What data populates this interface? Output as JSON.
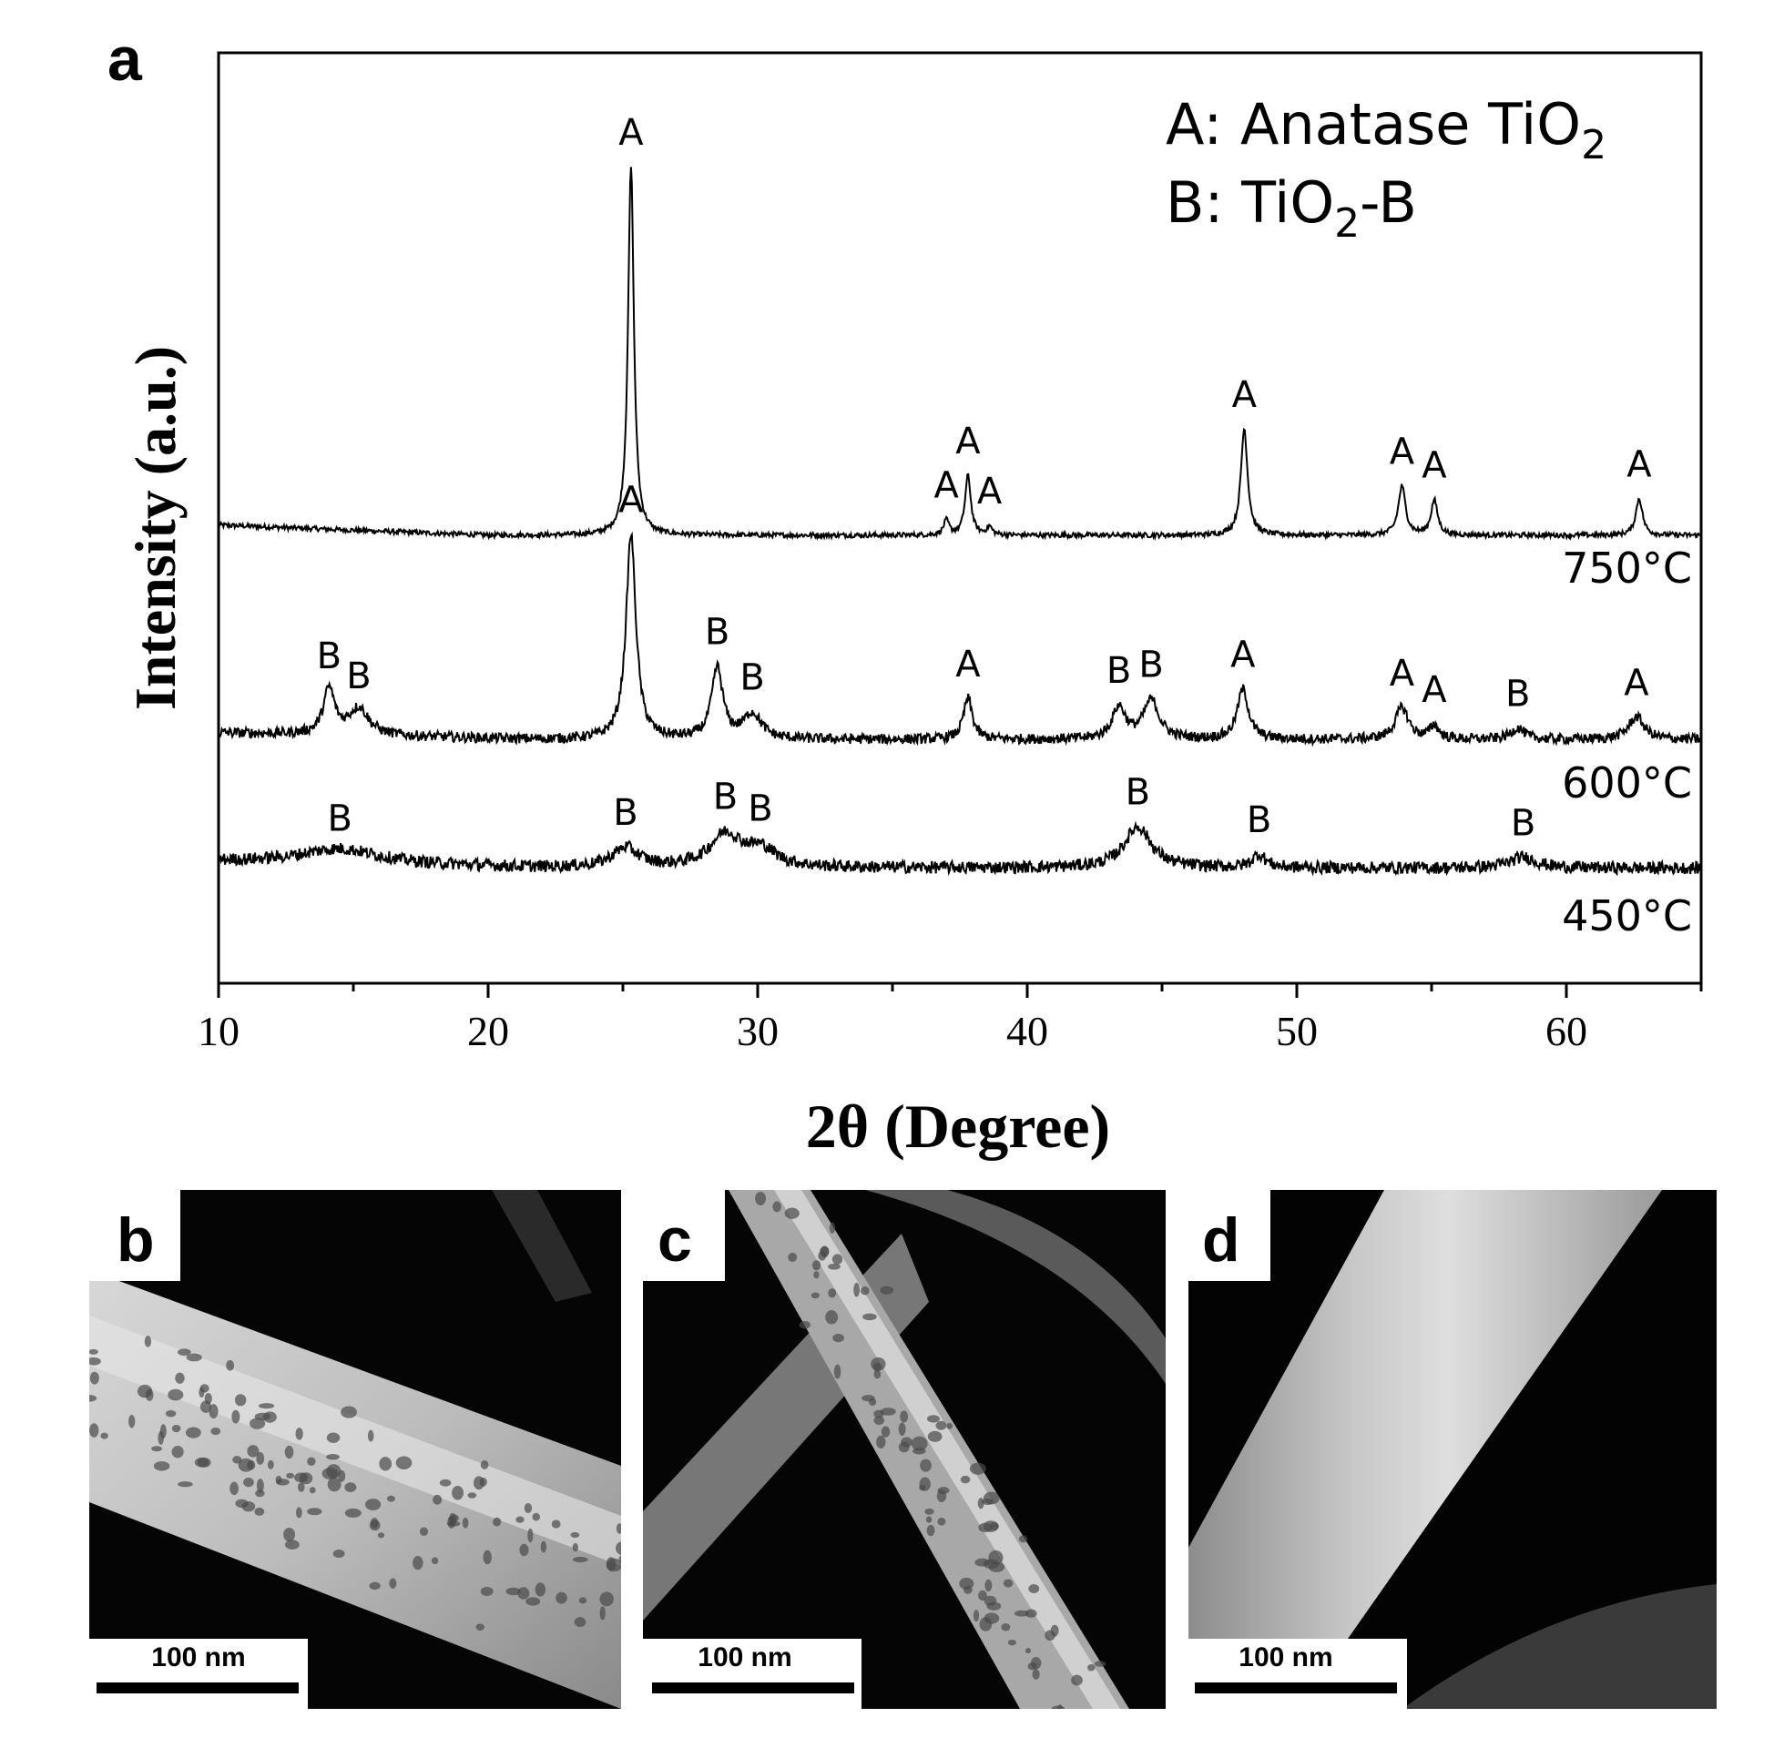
{
  "chart_data": {
    "type": "line",
    "panel_label": "a",
    "xlabel": "2θ (Degree)",
    "ylabel": "Intensity (a.u.)",
    "xlim": [
      10,
      65
    ],
    "xticks": [
      10,
      20,
      30,
      40,
      50,
      60
    ],
    "grid": false,
    "legend": {
      "position": "top-right",
      "entries": [
        {
          "key": "A",
          "text": "Anatase TiO",
          "sub": "2",
          "suffix": ""
        },
        {
          "key": "B",
          "text": "TiO",
          "sub": "2",
          "suffix": "-B"
        }
      ]
    },
    "series": [
      {
        "name": "750°C",
        "baseline": 0.0,
        "peaks": [
          {
            "x": 25.3,
            "label": "A",
            "height": 9.0,
            "width": 0.13
          },
          {
            "x": 37.0,
            "label": "A",
            "height": 0.35,
            "width": 0.12
          },
          {
            "x": 37.8,
            "label": "A",
            "height": 1.45,
            "width": 0.13
          },
          {
            "x": 38.6,
            "label": "A",
            "height": 0.2,
            "width": 0.12
          },
          {
            "x": 48.05,
            "label": "A",
            "height": 2.6,
            "width": 0.15
          },
          {
            "x": 53.9,
            "label": "A",
            "height": 1.2,
            "width": 0.16
          },
          {
            "x": 55.1,
            "label": "A",
            "height": 0.85,
            "width": 0.15
          },
          {
            "x": 62.7,
            "label": "A",
            "height": 0.9,
            "width": 0.15
          }
        ]
      },
      {
        "name": "600°C",
        "baseline": 0.35,
        "peaks": [
          {
            "x": 14.1,
            "label": "B",
            "height": 1.0,
            "width": 0.25
          },
          {
            "x": 15.2,
            "label": "B",
            "height": 0.6,
            "width": 0.45
          },
          {
            "x": 25.3,
            "label": "A",
            "height": 4.5,
            "width": 0.22
          },
          {
            "x": 28.5,
            "label": "B",
            "height": 1.55,
            "width": 0.25
          },
          {
            "x": 29.8,
            "label": "B",
            "height": 0.55,
            "width": 0.4
          },
          {
            "x": 37.8,
            "label": "A",
            "height": 0.9,
            "width": 0.2
          },
          {
            "x": 43.4,
            "label": "B",
            "height": 0.7,
            "width": 0.3
          },
          {
            "x": 44.6,
            "label": "B",
            "height": 0.85,
            "width": 0.35
          },
          {
            "x": 48.0,
            "label": "A",
            "height": 1.1,
            "width": 0.25
          },
          {
            "x": 53.9,
            "label": "A",
            "height": 0.7,
            "width": 0.3
          },
          {
            "x": 55.1,
            "label": "A",
            "height": 0.3,
            "width": 0.2
          },
          {
            "x": 58.2,
            "label": "B",
            "height": 0.25,
            "width": 0.3
          },
          {
            "x": 62.6,
            "label": "A",
            "height": 0.5,
            "width": 0.35
          }
        ]
      },
      {
        "name": "450°C",
        "baseline": 0.3,
        "peaks": [
          {
            "x": 14.5,
            "label": "B",
            "height": 0.35,
            "width": 1.8
          },
          {
            "x": 25.1,
            "label": "B",
            "height": 0.45,
            "width": 0.6
          },
          {
            "x": 28.8,
            "label": "B",
            "height": 0.75,
            "width": 0.7
          },
          {
            "x": 30.1,
            "label": "B",
            "height": 0.4,
            "width": 0.7
          },
          {
            "x": 44.1,
            "label": "B",
            "height": 0.95,
            "width": 0.6
          },
          {
            "x": 48.6,
            "label": "B",
            "height": 0.3,
            "width": 0.3
          },
          {
            "x": 58.4,
            "label": "B",
            "height": 0.25,
            "width": 0.6
          }
        ]
      }
    ]
  },
  "micrographs": [
    {
      "panel_label": "b",
      "scale_bar": "100 nm"
    },
    {
      "panel_label": "c",
      "scale_bar": "100 nm"
    },
    {
      "panel_label": "d",
      "scale_bar": "100 nm"
    }
  ]
}
